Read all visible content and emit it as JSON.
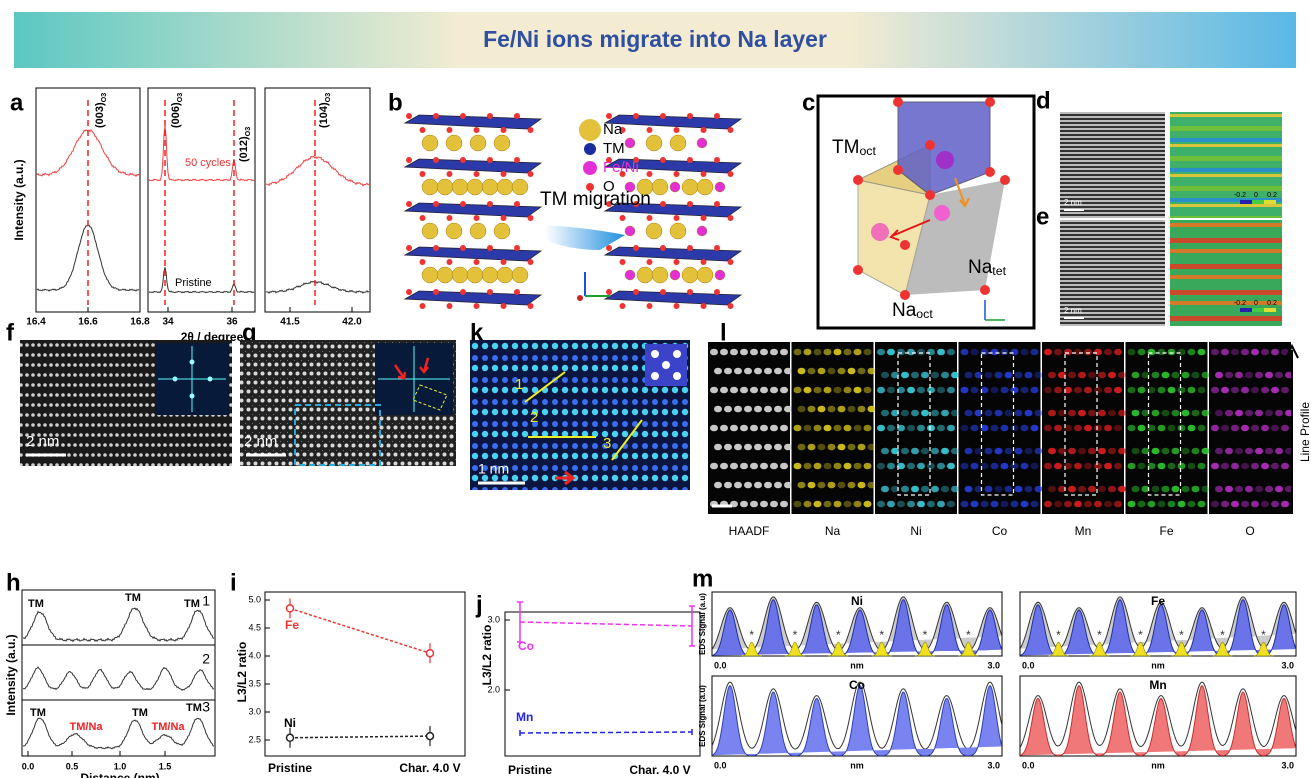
{
  "banner": {
    "title": "Fe/Ni ions migrate into Na layer"
  },
  "a": {
    "label": "a",
    "ylabel": "Intensity (a.u.)",
    "xlabel": "2θ / degree",
    "peaks": [
      {
        "text": "(003)",
        "sub": "O3"
      },
      {
        "text": "(006)",
        "sub": "O3"
      },
      {
        "text": "(012)",
        "sub": "O3"
      },
      {
        "text": "(104)",
        "sub": "O3"
      }
    ],
    "cycled": "50 cycles",
    "pristine": "Pristine",
    "xticks": [
      "16.4",
      "16.6",
      "16.8",
      "34",
      "36",
      "41.5",
      "42.0"
    ]
  },
  "b": {
    "label": "b",
    "legend": [
      "Na",
      "TM",
      "Fe/Ni",
      "O"
    ],
    "arrow": "TM migration"
  },
  "c": {
    "label": "c",
    "tm": {
      "text": "TM",
      "sub": "oct"
    },
    "na_tet": {
      "text": "Na",
      "sub": "tet"
    },
    "na_oct": {
      "text": "Na",
      "sub": "oct"
    }
  },
  "d": {
    "label": "d",
    "scale": "2 nm",
    "colorbar": [
      "-0.2",
      "0",
      "0.2"
    ]
  },
  "e": {
    "label": "e",
    "scale": "2 nm",
    "colorbar": [
      "-0.2",
      "0",
      "0.2"
    ]
  },
  "f": {
    "label": "f",
    "scale": "2 nm"
  },
  "g": {
    "label": "g",
    "scale": "2 nm"
  },
  "k": {
    "label": "k",
    "scale": "1 nm",
    "lines": [
      "1",
      "2",
      "3"
    ]
  },
  "l": {
    "label": "l",
    "channels": [
      "HAADF",
      "Na",
      "Ni",
      "Co",
      "Mn",
      "Fe",
      "O"
    ],
    "profile": "Line Profile"
  },
  "h": {
    "label": "h",
    "ylabel": "Intensity (a.u.)",
    "xlabel": "Distance (nm)",
    "xticks": [
      "0.0",
      "0.5",
      "1.0",
      "1.5"
    ],
    "traces": [
      "1",
      "2",
      "3"
    ],
    "peaks_top": [
      "TM",
      "TM",
      "TM"
    ],
    "peaks_bottom": [
      "TM",
      "TM/Na",
      "TM",
      "TM/Na",
      "TM"
    ]
  },
  "i": {
    "label": "i",
    "ylabel": "L3/L2 ratio",
    "yticks": [
      "2.5",
      "3.0",
      "3.5",
      "4.0",
      "4.5",
      "5.0"
    ],
    "categories": [
      "Pristine",
      "Char. 4.0 V"
    ],
    "fe": "Fe",
    "ni": "Ni"
  },
  "j": {
    "label": "j",
    "ylabel": "L3/L2 ratio",
    "yticks": [
      "2.0",
      "3.0"
    ],
    "categories": [
      "Pristine",
      "Char. 4.0 V"
    ],
    "co": "Co",
    "mn": "Mn"
  },
  "m": {
    "label": "m",
    "panels": [
      {
        "element": "Ni"
      },
      {
        "element": "Fe"
      },
      {
        "element": "Co"
      },
      {
        "element": "Mn"
      }
    ],
    "ylabel": "EDS Signal (a.u)",
    "xlabel": "nm",
    "xticks": [
      "0.0",
      "3.0"
    ]
  }
}
